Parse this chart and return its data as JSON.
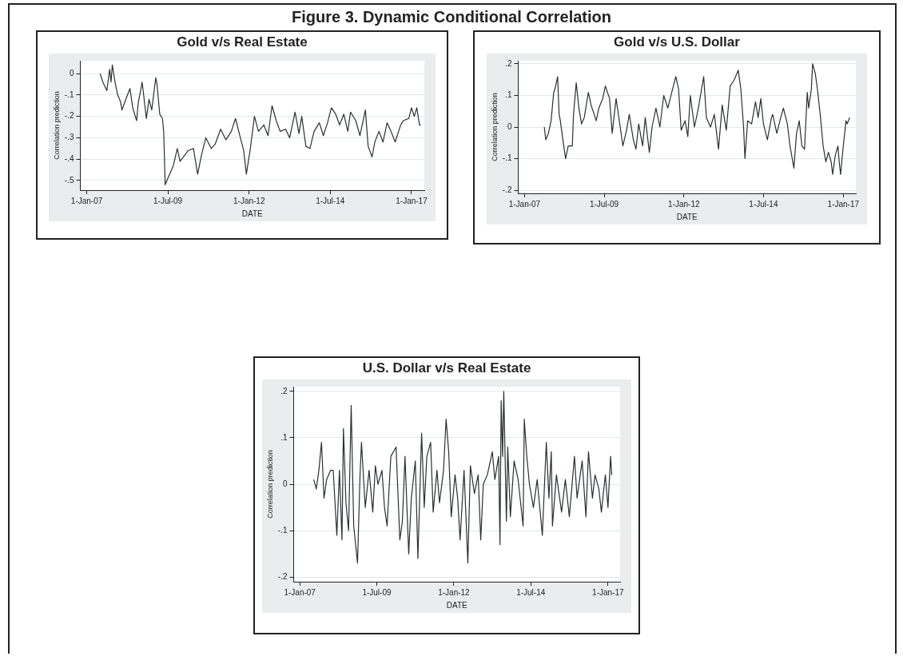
{
  "chart_data": [
    {
      "type": "other",
      "title": "Figure 3. Dynamic Conditional Correlation"
    },
    {
      "type": "line",
      "title": "Gold v/s Real Estate",
      "xlabel": "DATE",
      "ylabel": "Correlation prediction",
      "color": "#2b2f30",
      "grid": "y",
      "marker": "none",
      "xlim": [
        "2006-10-20",
        "2017-05-25"
      ],
      "ylim": [
        -0.545,
        0.06
      ],
      "xticks": [
        {
          "value": "2007-01-01",
          "label": "1-Jan-07"
        },
        {
          "value": "2009-07-01",
          "label": "1-Jul-09"
        },
        {
          "value": "2012-01-01",
          "label": "1-Jan-12"
        },
        {
          "value": "2014-07-01",
          "label": "1-Jul-14"
        },
        {
          "value": "2017-01-01",
          "label": "1-Jan-17"
        }
      ],
      "yticks": [
        {
          "value": 0,
          "label": "0"
        },
        {
          "value": -0.1,
          "label": "-.1"
        },
        {
          "value": -0.2,
          "label": "-.2"
        },
        {
          "value": -0.3,
          "label": "-.3"
        },
        {
          "value": -0.4,
          "label": "-.4"
        },
        {
          "value": -0.5,
          "label": "-.5"
        }
      ],
      "x": [
        "2007-06-01",
        "2007-07-01",
        "2007-08-15",
        "2007-09-15",
        "2007-10-01",
        "2007-10-15",
        "2007-11-15",
        "2007-12-15",
        "2008-01-15",
        "2008-02-01",
        "2008-03-15",
        "2008-05-01",
        "2008-06-01",
        "2008-07-15",
        "2008-08-01",
        "2008-09-15",
        "2008-11-01",
        "2008-12-01",
        "2009-01-01",
        "2009-02-15",
        "2009-03-01",
        "2009-04-01",
        "2009-05-01",
        "2009-05-15",
        "2009-06-01",
        "2009-07-01",
        "2009-09-01",
        "2009-10-15",
        "2009-11-15",
        "2010-02-15",
        "2010-04-15",
        "2010-06-01",
        "2010-07-15",
        "2010-09-01",
        "2010-11-01",
        "2010-12-15",
        "2011-02-15",
        "2011-04-15",
        "2011-06-15",
        "2011-08-01",
        "2011-10-01",
        "2011-11-01",
        "2011-12-01",
        "2012-01-15",
        "2012-03-01",
        "2012-04-15",
        "2012-06-15",
        "2012-08-01",
        "2012-09-15",
        "2012-11-01",
        "2012-12-15",
        "2013-02-15",
        "2013-04-01",
        "2013-06-01",
        "2013-07-15",
        "2013-08-15",
        "2013-10-01",
        "2013-11-15",
        "2014-01-01",
        "2014-03-01",
        "2014-04-15",
        "2014-06-01",
        "2014-07-15",
        "2014-09-01",
        "2014-10-15",
        "2014-12-01",
        "2015-01-15",
        "2015-02-15",
        "2015-04-15",
        "2015-06-01",
        "2015-08-01",
        "2015-09-01",
        "2015-10-15",
        "2015-11-15",
        "2016-01-01",
        "2016-02-15",
        "2016-04-01",
        "2016-05-15",
        "2016-07-01",
        "2016-09-01",
        "2016-10-01",
        "2016-12-01",
        "2017-01-01",
        "2017-02-01",
        "2017-03-01",
        "2017-04-01",
        "2017-04-15"
      ],
      "values": [
        0.0,
        -0.04,
        -0.08,
        0.02,
        -0.04,
        0.04,
        -0.04,
        -0.1,
        -0.13,
        -0.17,
        -0.12,
        -0.07,
        -0.16,
        -0.22,
        -0.14,
        -0.04,
        -0.21,
        -0.12,
        -0.17,
        -0.02,
        -0.05,
        -0.19,
        -0.21,
        -0.27,
        -0.52,
        -0.49,
        -0.43,
        -0.35,
        -0.41,
        -0.36,
        -0.35,
        -0.47,
        -0.38,
        -0.3,
        -0.35,
        -0.33,
        -0.26,
        -0.31,
        -0.27,
        -0.21,
        -0.31,
        -0.36,
        -0.47,
        -0.35,
        -0.2,
        -0.27,
        -0.24,
        -0.29,
        -0.15,
        -0.22,
        -0.27,
        -0.26,
        -0.3,
        -0.18,
        -0.28,
        -0.2,
        -0.34,
        -0.35,
        -0.27,
        -0.23,
        -0.29,
        -0.23,
        -0.16,
        -0.19,
        -0.24,
        -0.19,
        -0.27,
        -0.18,
        -0.22,
        -0.29,
        -0.17,
        -0.34,
        -0.39,
        -0.32,
        -0.27,
        -0.32,
        -0.23,
        -0.27,
        -0.32,
        -0.24,
        -0.22,
        -0.21,
        -0.16,
        -0.2,
        -0.16,
        -0.24,
        -0.24
      ]
    },
    {
      "type": "line",
      "title": "Gold v/s U.S. Dollar",
      "xlabel": "DATE",
      "ylabel": "Correlation prediction",
      "color": "#2b2f30",
      "grid": "y",
      "marker": "none",
      "xlim": [
        "2006-10-20",
        "2017-05-25"
      ],
      "ylim": [
        -0.21,
        0.21
      ],
      "xticks": [
        {
          "value": "2007-01-01",
          "label": "1-Jan-07"
        },
        {
          "value": "2009-07-01",
          "label": "1-Jul-09"
        },
        {
          "value": "2012-01-01",
          "label": "1-Jan-12"
        },
        {
          "value": "2014-07-01",
          "label": "1-Jul-14"
        },
        {
          "value": "2017-01-01",
          "label": "1-Jan-17"
        }
      ],
      "yticks": [
        {
          "value": 0.2,
          "label": ".2"
        },
        {
          "value": 0.1,
          "label": ".1"
        },
        {
          "value": 0,
          "label": "0"
        },
        {
          "value": -0.1,
          "label": "-.1"
        },
        {
          "value": -0.2,
          "label": "-.2"
        }
      ],
      "x": [
        "2007-08-15",
        "2007-09-01",
        "2007-10-01",
        "2007-11-01",
        "2007-12-01",
        "2007-12-15",
        "2008-01-15",
        "2008-02-01",
        "2008-02-15",
        "2008-03-15",
        "2008-04-15",
        "2008-05-15",
        "2008-07-01",
        "2008-07-15",
        "2008-08-15",
        "2008-09-15",
        "2008-10-15",
        "2008-11-15",
        "2009-01-01",
        "2009-02-01",
        "2009-04-01",
        "2009-05-01",
        "2009-06-15",
        "2009-07-15",
        "2009-09-01",
        "2009-10-01",
        "2009-11-15",
        "2010-01-01",
        "2010-02-01",
        "2010-03-15",
        "2010-04-15",
        "2010-06-01",
        "2010-07-01",
        "2010-08-01",
        "2010-09-15",
        "2010-10-15",
        "2010-12-01",
        "2011-01-01",
        "2011-02-15",
        "2011-04-01",
        "2011-05-15",
        "2011-07-01",
        "2011-08-15",
        "2011-10-01",
        "2011-11-01",
        "2011-12-01",
        "2012-01-15",
        "2012-02-15",
        "2012-03-15",
        "2012-05-01",
        "2012-06-15",
        "2012-08-15",
        "2012-09-15",
        "2012-11-01",
        "2012-12-15",
        "2013-02-01",
        "2013-03-15",
        "2013-05-01",
        "2013-06-15",
        "2013-08-01",
        "2013-09-15",
        "2013-10-15",
        "2013-11-15",
        "2013-12-01",
        "2014-01-01",
        "2014-02-15",
        "2014-04-01",
        "2014-05-01",
        "2014-06-01",
        "2014-07-01",
        "2014-08-15",
        "2014-10-01",
        "2014-10-15",
        "2014-12-01",
        "2015-01-15",
        "2015-02-15",
        "2015-04-01",
        "2015-05-01",
        "2015-06-15",
        "2015-07-15",
        "2015-08-15",
        "2015-09-15",
        "2015-10-15",
        "2015-11-15",
        "2015-12-01",
        "2016-01-01",
        "2016-01-15",
        "2016-02-15",
        "2016-03-15",
        "2016-04-15",
        "2016-05-15",
        "2016-06-15",
        "2016-07-15",
        "2016-08-15",
        "2016-09-01",
        "2016-10-01",
        "2016-11-01",
        "2016-11-15",
        "2016-12-01",
        "2017-01-01",
        "2017-02-01",
        "2017-02-15",
        "2017-03-15"
      ],
      "values": [
        0.0,
        -0.04,
        -0.02,
        0.02,
        0.11,
        0.12,
        0.16,
        0.04,
        0.02,
        -0.04,
        -0.1,
        -0.06,
        -0.06,
        0.04,
        0.14,
        0.06,
        0.01,
        0.03,
        0.11,
        0.07,
        0.02,
        0.06,
        0.09,
        0.13,
        0.09,
        -0.02,
        0.09,
        0.0,
        -0.06,
        -0.01,
        0.04,
        -0.04,
        -0.07,
        0.01,
        -0.06,
        0.03,
        -0.08,
        0.0,
        0.06,
        0.0,
        0.1,
        0.06,
        0.11,
        0.16,
        0.12,
        -0.01,
        0.02,
        -0.03,
        0.1,
        0.0,
        0.06,
        0.16,
        0.03,
        0.0,
        0.04,
        -0.07,
        0.07,
        -0.01,
        0.13,
        0.15,
        0.18,
        0.12,
        0.0,
        -0.1,
        0.02,
        0.01,
        0.08,
        0.03,
        0.09,
        0.01,
        -0.04,
        0.03,
        0.04,
        -0.02,
        0.03,
        0.06,
        0.01,
        -0.06,
        -0.13,
        -0.02,
        0.02,
        -0.06,
        -0.07,
        0.11,
        0.06,
        0.12,
        0.2,
        0.17,
        0.11,
        0.03,
        -0.06,
        -0.11,
        -0.08,
        -0.11,
        -0.15,
        -0.09,
        -0.06,
        -0.11,
        -0.15,
        -0.06,
        0.02,
        0.01,
        0.03
      ]
    },
    {
      "type": "line",
      "title": "U.S. Dollar v/s Real Estate",
      "xlabel": "DATE",
      "ylabel": "Correlation prediction",
      "color": "#2b2f30",
      "grid": "y",
      "marker": "none",
      "xlim": [
        "2006-10-20",
        "2017-05-25"
      ],
      "ylim": [
        -0.21,
        0.21
      ],
      "xticks": [
        {
          "value": "2007-01-01",
          "label": "1-Jan-07"
        },
        {
          "value": "2009-07-01",
          "label": "1-Jul-09"
        },
        {
          "value": "2012-01-01",
          "label": "1-Jan-12"
        },
        {
          "value": "2014-07-01",
          "label": "1-Jul-14"
        },
        {
          "value": "2017-01-01",
          "label": "1-Jan-17"
        }
      ],
      "yticks": [
        {
          "value": 0.2,
          "label": ".2"
        },
        {
          "value": 0.1,
          "label": ".1"
        },
        {
          "value": 0,
          "label": "0"
        },
        {
          "value": -0.1,
          "label": "-.1"
        },
        {
          "value": -0.2,
          "label": "-.2"
        }
      ],
      "x": [
        "2007-06-15",
        "2007-07-15",
        "2007-08-15",
        "2007-09-15",
        "2007-10-15",
        "2007-11-15",
        "2008-01-01",
        "2008-02-01",
        "2008-03-15",
        "2008-04-15",
        "2008-05-15",
        "2008-06-01",
        "2008-07-01",
        "2008-08-01",
        "2008-09-01",
        "2008-10-01",
        "2008-11-15",
        "2008-12-15",
        "2009-01-01",
        "2009-02-15",
        "2009-04-01",
        "2009-05-15",
        "2009-06-15",
        "2009-07-15",
        "2009-09-01",
        "2009-10-01",
        "2009-11-01",
        "2009-12-15",
        "2010-01-15",
        "2010-02-15",
        "2010-04-01",
        "2010-05-01",
        "2010-06-01",
        "2010-07-15",
        "2010-08-15",
        "2010-10-01",
        "2010-11-01",
        "2010-12-15",
        "2011-01-15",
        "2011-02-15",
        "2011-04-01",
        "2011-05-01",
        "2011-06-15",
        "2011-07-15",
        "2011-09-01",
        "2011-10-01",
        "2011-11-01",
        "2011-12-01",
        "2012-01-15",
        "2012-02-15",
        "2012-03-15",
        "2012-05-01",
        "2012-06-15",
        "2012-07-15",
        "2012-09-01",
        "2012-10-15",
        "2012-11-15",
        "2012-12-15",
        "2013-02-01",
        "2013-04-01",
        "2013-05-01",
        "2013-06-15",
        "2013-07-01",
        "2013-07-15",
        "2013-08-01",
        "2013-08-15",
        "2013-09-15",
        "2013-10-01",
        "2013-11-01",
        "2013-12-15",
        "2014-02-01",
        "2014-04-01",
        "2014-04-15",
        "2014-05-15",
        "2014-06-15",
        "2014-08-01",
        "2014-09-15",
        "2014-11-15",
        "2015-01-01",
        "2015-02-01",
        "2015-03-01",
        "2015-03-15",
        "2015-05-01",
        "2015-07-01",
        "2015-08-15",
        "2015-10-01",
        "2015-12-01",
        "2016-01-01",
        "2016-03-01",
        "2016-04-15",
        "2016-05-15",
        "2016-07-01",
        "2016-08-01",
        "2016-09-15",
        "2016-10-15",
        "2016-12-01",
        "2017-01-01",
        "2017-02-01",
        "2017-02-15"
      ],
      "values": [
        0.01,
        -0.01,
        0.03,
        0.09,
        -0.03,
        0.01,
        0.03,
        0.03,
        -0.11,
        0.03,
        -0.12,
        0.12,
        -0.04,
        -0.1,
        0.17,
        -0.09,
        -0.17,
        0.02,
        0.09,
        -0.05,
        0.03,
        -0.06,
        0.04,
        0.0,
        0.03,
        -0.05,
        -0.09,
        0.06,
        0.07,
        0.08,
        -0.12,
        -0.08,
        0.06,
        -0.15,
        -0.03,
        0.05,
        -0.16,
        0.11,
        -0.05,
        0.06,
        0.09,
        -0.06,
        0.03,
        -0.04,
        0.03,
        0.14,
        0.07,
        -0.07,
        0.02,
        -0.03,
        -0.12,
        0.03,
        -0.17,
        0.04,
        -0.02,
        0.02,
        -0.12,
        0.0,
        0.02,
        0.07,
        0.01,
        0.06,
        -0.13,
        0.18,
        0.06,
        0.2,
        -0.08,
        0.08,
        -0.07,
        0.05,
        0.01,
        -0.09,
        0.14,
        0.06,
        0.0,
        -0.05,
        0.01,
        -0.11,
        0.09,
        -0.03,
        0.07,
        -0.09,
        0.02,
        -0.06,
        0.01,
        -0.07,
        0.06,
        -0.03,
        0.05,
        -0.07,
        0.07,
        -0.03,
        0.02,
        -0.01,
        -0.06,
        0.02,
        -0.05,
        0.06,
        0.02
      ]
    }
  ]
}
